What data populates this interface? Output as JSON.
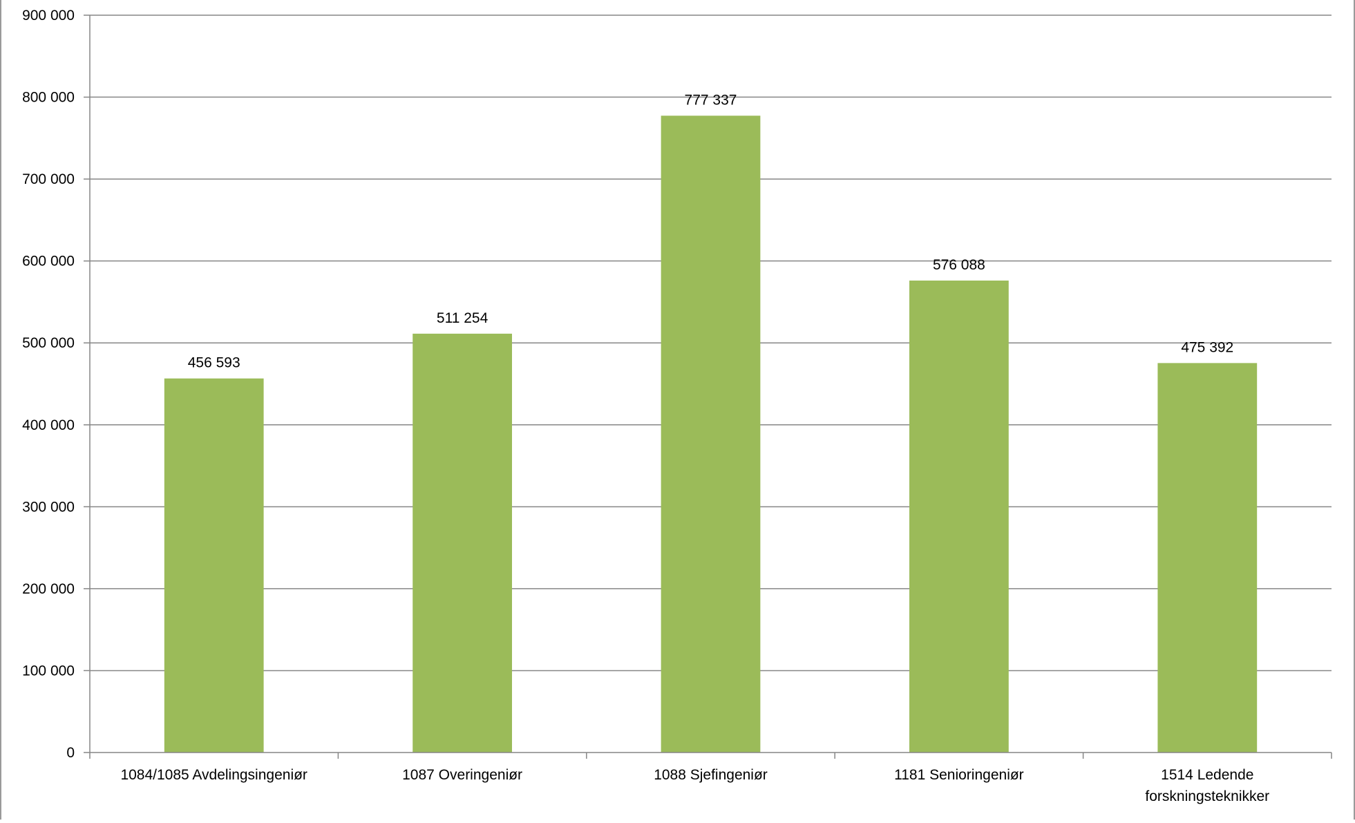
{
  "chart_data": {
    "type": "bar",
    "categories": [
      [
        "1084/1085 Avdelingsingeniør"
      ],
      [
        "1087 Overingeniør"
      ],
      [
        "1088 Sjefingeniør"
      ],
      [
        "1181 Senioringeniør"
      ],
      [
        "1514 Ledende",
        "forskningsteknikker"
      ]
    ],
    "values": [
      456593,
      511254,
      777337,
      576088,
      475392
    ],
    "value_labels": [
      "456 593",
      "511 254",
      "777 337",
      "576 088",
      "475 392"
    ],
    "ylim": [
      0,
      900000
    ],
    "yticks": [
      0,
      100000,
      200000,
      300000,
      400000,
      500000,
      600000,
      700000,
      800000,
      900000
    ],
    "ytick_labels": [
      "0",
      "100 000",
      "200 000",
      "300 000",
      "400 000",
      "500 000",
      "600 000",
      "700 000",
      "800 000",
      "900 000"
    ],
    "grid": true,
    "legend": false,
    "colors": {
      "bar": "#9bbb59",
      "grid": "#868686",
      "axis": "#868686",
      "frame": "#9a9a9a"
    }
  }
}
